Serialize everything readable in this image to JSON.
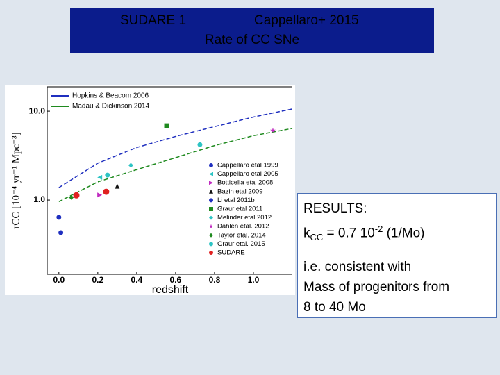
{
  "header": {
    "line1_left": "SUDARE 1",
    "line1_right": "Cappellaro+ 2015",
    "line2": "Rate of CC SNe"
  },
  "results": {
    "heading": "RESULTS:",
    "k_parts": [
      "k",
      "CC",
      " = 0.7 10",
      "-2",
      " (1/Mo)"
    ],
    "lines": [
      "i.e. consistent with",
      "Mass of progenitors from",
      "8 to 40 Mo"
    ]
  },
  "chart_data": {
    "type": "scatter",
    "xlabel": "redshift",
    "ylabel": "rCC [10⁻⁴ yr⁻¹ Mpc⁻³]",
    "log_y": true,
    "xlim": [
      -0.06,
      1.2
    ],
    "ylim": [
      0.146,
      18.8
    ],
    "xticks": [
      {
        "value": 0,
        "label": "0.0"
      },
      0.2,
      0.4,
      0.6,
      0.8,
      {
        "value": 1,
        "label": "1.0"
      }
    ],
    "yticks": [
      {
        "value": 1,
        "label": "1.0"
      },
      {
        "value": 10,
        "label": "10.0"
      }
    ],
    "lines": [
      {
        "name": "Hopkins & Beacom 2006",
        "color": "#1f2fbf",
        "x": [
          0,
          0.2,
          0.4,
          0.6,
          0.8,
          1.0,
          1.2
        ],
        "values": [
          1.38,
          2.6,
          3.9,
          5.2,
          6.7,
          8.6,
          10.6
        ]
      },
      {
        "name": "Madau & Dickinson 2014",
        "color": "#1f8a1f",
        "x": [
          0,
          0.2,
          0.4,
          0.6,
          0.8,
          1.0,
          1.2
        ],
        "values": [
          0.96,
          1.6,
          2.2,
          3.0,
          4.1,
          5.3,
          6.4
        ]
      }
    ],
    "series": [
      {
        "name": "Cappellaro etal 1999",
        "color": "#1f2fbf",
        "marker": "circle",
        "x": [
          0.01
        ],
        "values": [
          0.43
        ]
      },
      {
        "name": "Cappellaro etal 2005",
        "color": "#2ec4c4",
        "marker": "tri-left",
        "x": [
          0.21
        ],
        "values": [
          1.8
        ]
      },
      {
        "name": "Botticella etal 2008",
        "color": "#c02cc0",
        "marker": "tri-right",
        "x": [
          0.21
        ],
        "values": [
          1.14
        ]
      },
      {
        "name": "Bazin etal 2009",
        "color": "#111111",
        "marker": "tri-up",
        "x": [
          0.3
        ],
        "values": [
          1.43
        ]
      },
      {
        "name": "Li etal 2011b",
        "color": "#1f2fbf",
        "marker": "circle",
        "x": [
          0.0
        ],
        "values": [
          0.64
        ]
      },
      {
        "name": "Graur etal 2011",
        "color": "#1f8a1f",
        "marker": "square",
        "x": [
          0.554
        ],
        "values": [
          6.85
        ]
      },
      {
        "name": "Melinder etal 2012",
        "color": "#2ec4c4",
        "marker": "diamond",
        "x": [
          0.37
        ],
        "values": [
          2.46
        ]
      },
      {
        "name": "Dahlen etal. 2012",
        "color": "#c02cc0",
        "marker": "star",
        "x": [
          1.1
        ],
        "values": [
          6.04
        ]
      },
      {
        "name": "Taylor etal. 2014",
        "color": "#1f8a1f",
        "marker": "diamond",
        "x": [
          0.064
        ],
        "values": [
          1.07
        ]
      },
      {
        "name": "Graur etal. 2015",
        "color": "#2ec4c4",
        "marker": "circle",
        "x": [
          0.25,
          0.725
        ],
        "values": [
          1.91,
          4.2
        ]
      },
      {
        "name": "SUDARE",
        "color": "#e02020",
        "marker": "circle",
        "x": [
          0.09,
          0.243
        ],
        "values": [
          1.13,
          1.24
        ]
      }
    ]
  }
}
